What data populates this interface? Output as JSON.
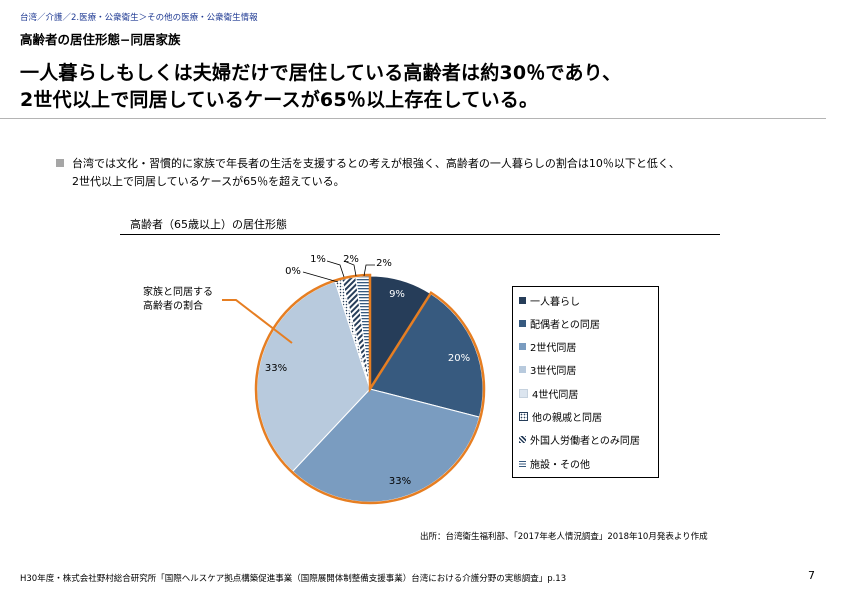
{
  "header": {
    "breadcrumb": "台湾／介護／2.医療・公衆衛生＞その他の医療・公衆衛生情報",
    "section_title": "高齢者の居住形態−同居家族",
    "headline_line1": "一人暮らしもしくは夫婦だけで居住している高齢者は約30％であり、",
    "headline_line2": "2世代以上で同居しているケースが65％以上存在している。"
  },
  "bullet": {
    "line1": "台湾では文化・習慣的に家族で年長者の生活を支援するとの考えが根強く、高齢者の一人暮らしの割合は10％以下と低く、",
    "line2": "2世代以上で同居しているケースが65％を超えている。"
  },
  "chart_data": {
    "type": "pie",
    "title": "高齢者（65歳以上）の居住形態",
    "categories": [
      "一人暮らし",
      "配偶者との同居",
      "2世代同居",
      "3世代同居",
      "4世代同居",
      "他の親戚と同居",
      "外国人労働者とのみ同居",
      "施設・その他"
    ],
    "values": [
      9,
      20,
      33,
      33,
      0,
      1,
      2,
      2
    ],
    "data_labels": [
      "9%",
      "20%",
      "33%",
      "33%",
      "0%",
      "1%",
      "2%",
      "2%"
    ],
    "legend_placement": "right",
    "annotation": "家族と同居する\n高齢者の割合",
    "annotation_lines": [
      "家族と同居する",
      "高齢者の割合"
    ],
    "colors": [
      "#263d59",
      "#375a7f",
      "#7a9cc0",
      "#b8cadd",
      "#dce5ef",
      "#ffffff",
      "#ffffff",
      "#ffffff"
    ],
    "patterns": [
      "solid",
      "solid",
      "solid",
      "solid",
      "solid",
      "dots",
      "dashes",
      "hlines"
    ],
    "highlight_color": "#e67e22"
  },
  "source": "出所：台湾衛生福利部、「2017年老人情況調査」2018年10月発表より作成",
  "footer": "H30年度・株式会社野村総合研究所「国際ヘルスケア拠点構築促進事業（国際展開体制整備支援事業）台湾における介護分野の実態調査」p.13",
  "page_number": "7"
}
